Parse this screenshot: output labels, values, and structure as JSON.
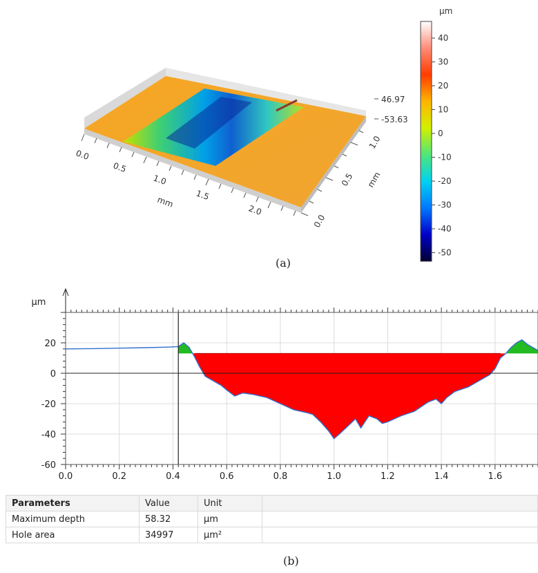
{
  "panel_a": {
    "caption": "(a)",
    "height_max_label": "46.97",
    "height_min_label": "-53.63",
    "x_axis_label": "mm",
    "y_axis_label": "mm",
    "x_ticks": [
      "0.0",
      "0.5",
      "1.0",
      "1.5",
      "2.0"
    ],
    "y_ticks": [
      "0.0",
      "0.5",
      "1.0"
    ],
    "colorbar": {
      "unit": "µm",
      "ticks": [
        "40",
        "30",
        "20",
        "10",
        "0",
        "-10",
        "-20",
        "-30",
        "-40",
        "-50"
      ],
      "range": [
        -53.63,
        46.97
      ],
      "colors": [
        "#000033",
        "#0000c8",
        "#0078ff",
        "#00d2f0",
        "#50e678",
        "#d2f000",
        "#ffb400",
        "#ff3c00",
        "#ff8c78",
        "#ffffff"
      ]
    }
  },
  "panel_b": {
    "caption": "(b)",
    "params": {
      "headers": [
        "Parameters",
        "Value",
        "Unit"
      ],
      "rows": [
        {
          "name": "Maximum depth",
          "value": "58.32",
          "unit": "µm"
        },
        {
          "name": "Hole area",
          "value": "34997",
          "unit": "µm²"
        }
      ]
    }
  },
  "chart_data": {
    "type": "area",
    "title": "",
    "xlabel": "",
    "ylabel": "µm",
    "xlim": [
      0.0,
      1.76
    ],
    "ylim": [
      -60,
      40
    ],
    "x_ticks": [
      "0.0",
      "0.2",
      "0.4",
      "0.6",
      "0.8",
      "1.0",
      "1.2",
      "1.4",
      "1.6"
    ],
    "y_ticks": [
      "20",
      "0",
      "-20",
      "-40",
      "-60"
    ],
    "reference_level": 13,
    "cursor_x": 0.42,
    "colors": {
      "profile": "#2f6fcf",
      "hole": "#ff0000",
      "peaks": "#22bb22"
    },
    "profile": {
      "x": [
        0.0,
        0.1,
        0.2,
        0.3,
        0.38,
        0.42,
        0.44,
        0.46,
        0.48,
        0.5,
        0.52,
        0.55,
        0.58,
        0.6,
        0.63,
        0.66,
        0.7,
        0.75,
        0.8,
        0.85,
        0.9,
        0.92,
        0.95,
        0.98,
        1.0,
        1.02,
        1.05,
        1.08,
        1.1,
        1.13,
        1.16,
        1.18,
        1.2,
        1.25,
        1.3,
        1.35,
        1.38,
        1.4,
        1.42,
        1.45,
        1.5,
        1.55,
        1.58,
        1.6,
        1.62,
        1.64,
        1.66,
        1.68,
        1.7,
        1.72,
        1.76
      ],
      "y": [
        16,
        16.2,
        16.5,
        16.8,
        17.2,
        17.5,
        20,
        17,
        11,
        4,
        -2,
        -5,
        -8,
        -11,
        -15,
        -13,
        -14,
        -16,
        -20,
        -24,
        -26,
        -27,
        -32,
        -38,
        -43,
        -40,
        -35,
        -30,
        -36,
        -28,
        -30,
        -33,
        -32,
        -28,
        -25,
        -19,
        -17,
        -20,
        -16,
        -12,
        -9,
        -4,
        -1,
        3,
        10,
        13,
        17,
        20,
        22,
        19,
        15
      ]
    }
  }
}
